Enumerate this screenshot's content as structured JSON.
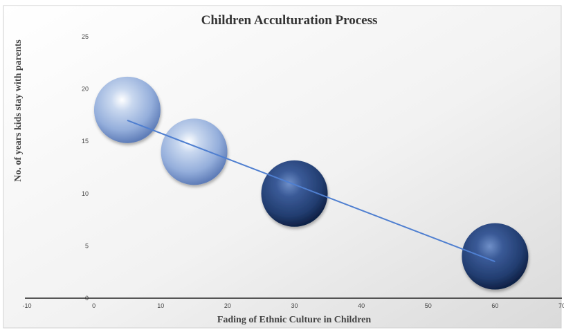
{
  "chart_data": {
    "type": "bubble",
    "title": "Children Acculturation Process",
    "xlabel": "Fading of Ethnic Culture in Children",
    "ylabel": "No. of years kids stay with parents",
    "xlim": [
      -10,
      70
    ],
    "ylim": [
      0,
      25
    ],
    "x_ticks": [
      "-10",
      "0",
      "10",
      "20",
      "30",
      "40",
      "50",
      "60",
      "70"
    ],
    "y_ticks": [
      "0",
      "5",
      "10",
      "15",
      "20",
      "25"
    ],
    "points": [
      {
        "x": 5,
        "y": 18,
        "style": "light"
      },
      {
        "x": 15,
        "y": 14,
        "style": "light"
      },
      {
        "x": 30,
        "y": 10,
        "style": "dark"
      },
      {
        "x": 60,
        "y": 4,
        "style": "dark"
      }
    ],
    "trendline": {
      "x": [
        5,
        60
      ],
      "y": [
        17,
        3.5
      ]
    },
    "grid": false,
    "legend": "none",
    "colors": {
      "light_bubble": "#a9c1e6",
      "dark_bubble": "#243f73",
      "trendline": "#4f7fd0",
      "axis": "#222222"
    }
  }
}
